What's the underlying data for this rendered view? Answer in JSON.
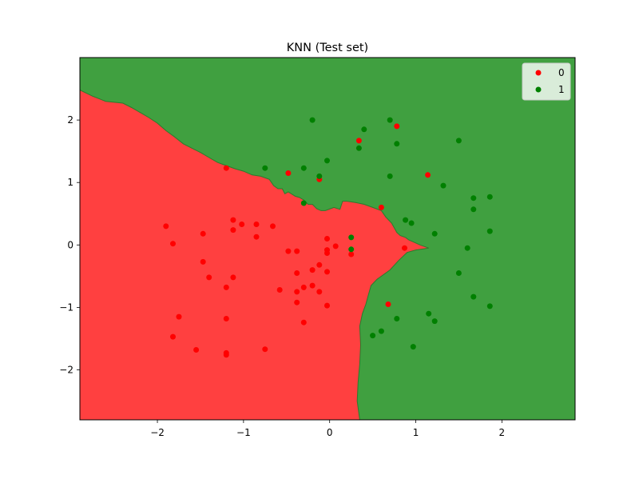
{
  "chart_data": {
    "type": "scatter",
    "title": "KNN (Test set)",
    "xlabel": "",
    "ylabel": "",
    "xlim": [
      -2.9,
      2.85
    ],
    "ylim": [
      -2.8,
      3.0
    ],
    "x_ticks": [
      -2,
      -1,
      0,
      1,
      2
    ],
    "y_ticks": [
      -2,
      -1,
      0,
      1,
      2
    ],
    "x_tick_labels": [
      "−2",
      "−1",
      "0",
      "1",
      "2"
    ],
    "y_tick_labels": [
      "−2",
      "−1",
      "0",
      "1",
      "2"
    ],
    "grid": false,
    "legend_position": "top-right",
    "region_colors": {
      "0": "#ff4040",
      "1": "#40a040"
    },
    "decision_boundary": [
      [
        -2.9,
        2.48
      ],
      [
        -2.75,
        2.38
      ],
      [
        -2.6,
        2.3
      ],
      [
        -2.4,
        2.27
      ],
      [
        -2.3,
        2.2
      ],
      [
        -2.2,
        2.12
      ],
      [
        -2.1,
        2.04
      ],
      [
        -2.0,
        1.95
      ],
      [
        -1.9,
        1.83
      ],
      [
        -1.8,
        1.73
      ],
      [
        -1.7,
        1.62
      ],
      [
        -1.6,
        1.55
      ],
      [
        -1.5,
        1.48
      ],
      [
        -1.4,
        1.4
      ],
      [
        -1.3,
        1.32
      ],
      [
        -1.2,
        1.27
      ],
      [
        -1.1,
        1.22
      ],
      [
        -1.0,
        1.18
      ],
      [
        -0.9,
        1.12
      ],
      [
        -0.8,
        1.1
      ],
      [
        -0.7,
        1.05
      ],
      [
        -0.65,
        0.95
      ],
      [
        -0.6,
        0.9
      ],
      [
        -0.55,
        0.9
      ],
      [
        -0.52,
        0.82
      ],
      [
        -0.48,
        0.85
      ],
      [
        -0.4,
        0.78
      ],
      [
        -0.35,
        0.76
      ],
      [
        -0.3,
        0.72
      ],
      [
        -0.25,
        0.65
      ],
      [
        -0.2,
        0.65
      ],
      [
        -0.15,
        0.58
      ],
      [
        -0.1,
        0.55
      ],
      [
        -0.05,
        0.55
      ],
      [
        0.05,
        0.6
      ],
      [
        0.12,
        0.57
      ],
      [
        0.15,
        0.7
      ],
      [
        0.2,
        0.7
      ],
      [
        0.3,
        0.68
      ],
      [
        0.4,
        0.65
      ],
      [
        0.5,
        0.6
      ],
      [
        0.6,
        0.55
      ],
      [
        0.65,
        0.45
      ],
      [
        0.72,
        0.35
      ],
      [
        0.78,
        0.2
      ],
      [
        0.82,
        0.15
      ],
      [
        0.88,
        0.12
      ],
      [
        0.92,
        0.08
      ],
      [
        0.97,
        0.05
      ],
      [
        1.05,
        0.0
      ],
      [
        1.15,
        -0.05
      ],
      [
        1.0,
        -0.08
      ],
      [
        0.9,
        -0.12
      ],
      [
        0.8,
        -0.25
      ],
      [
        0.7,
        -0.4
      ],
      [
        0.6,
        -0.5
      ],
      [
        0.55,
        -0.55
      ],
      [
        0.48,
        -0.65
      ],
      [
        0.45,
        -0.8
      ],
      [
        0.42,
        -0.95
      ],
      [
        0.38,
        -1.1
      ],
      [
        0.35,
        -1.3
      ],
      [
        0.36,
        -1.6
      ],
      [
        0.35,
        -1.9
      ],
      [
        0.33,
        -2.2
      ],
      [
        0.32,
        -2.5
      ],
      [
        0.35,
        -2.8
      ]
    ],
    "series": [
      {
        "name": "0",
        "color": "#ff0000",
        "points": [
          [
            -1.9,
            0.3
          ],
          [
            -1.82,
            0.02
          ],
          [
            -1.75,
            -1.15
          ],
          [
            -1.82,
            -1.47
          ],
          [
            -1.55,
            -1.68
          ],
          [
            -1.47,
            0.18
          ],
          [
            -1.47,
            -0.27
          ],
          [
            -1.4,
            -0.52
          ],
          [
            -1.2,
            1.23
          ],
          [
            -1.2,
            -0.68
          ],
          [
            -1.2,
            -1.18
          ],
          [
            -1.2,
            -1.73
          ],
          [
            -1.2,
            -1.76
          ],
          [
            -1.12,
            0.4
          ],
          [
            -1.12,
            0.24
          ],
          [
            -1.12,
            -0.52
          ],
          [
            -1.02,
            0.33
          ],
          [
            -0.85,
            0.33
          ],
          [
            -0.85,
            0.13
          ],
          [
            -0.75,
            -1.67
          ],
          [
            -0.66,
            0.3
          ],
          [
            -0.58,
            -0.72
          ],
          [
            -0.48,
            1.15
          ],
          [
            -0.48,
            -0.1
          ],
          [
            -0.38,
            -0.1
          ],
          [
            -0.38,
            -0.45
          ],
          [
            -0.38,
            -0.75
          ],
          [
            -0.38,
            -0.92
          ],
          [
            -0.3,
            -0.68
          ],
          [
            -0.3,
            -1.24
          ],
          [
            -0.2,
            -0.4
          ],
          [
            -0.2,
            -0.65
          ],
          [
            -0.12,
            -0.32
          ],
          [
            -0.12,
            -0.75
          ],
          [
            -0.12,
            1.05
          ],
          [
            -0.03,
            0.1
          ],
          [
            -0.03,
            -0.08
          ],
          [
            -0.03,
            -0.13
          ],
          [
            -0.03,
            -0.43
          ],
          [
            -0.03,
            -0.97
          ],
          [
            0.07,
            -0.02
          ],
          [
            0.25,
            -0.15
          ],
          [
            0.34,
            1.67
          ],
          [
            0.6,
            0.6
          ],
          [
            0.68,
            -0.95
          ],
          [
            0.78,
            1.9
          ],
          [
            0.87,
            -0.05
          ],
          [
            1.14,
            1.12
          ]
        ]
      },
      {
        "name": "1",
        "color": "#008000",
        "points": [
          [
            -0.2,
            2.0
          ],
          [
            -0.75,
            1.23
          ],
          [
            -0.3,
            1.23
          ],
          [
            -0.12,
            1.1
          ],
          [
            -0.3,
            0.67
          ],
          [
            -0.03,
            1.35
          ],
          [
            0.25,
            0.12
          ],
          [
            0.25,
            -0.07
          ],
          [
            0.34,
            1.55
          ],
          [
            0.4,
            1.85
          ],
          [
            0.5,
            -1.45
          ],
          [
            0.6,
            -1.38
          ],
          [
            0.7,
            2.0
          ],
          [
            0.7,
            1.1
          ],
          [
            0.78,
            1.62
          ],
          [
            0.78,
            -1.18
          ],
          [
            0.88,
            0.4
          ],
          [
            0.95,
            0.35
          ],
          [
            0.97,
            -1.63
          ],
          [
            1.15,
            -1.1
          ],
          [
            1.22,
            -1.22
          ],
          [
            1.22,
            0.18
          ],
          [
            1.32,
            0.95
          ],
          [
            1.5,
            1.67
          ],
          [
            1.5,
            -0.45
          ],
          [
            1.6,
            -0.05
          ],
          [
            1.67,
            0.75
          ],
          [
            1.67,
            0.57
          ],
          [
            1.67,
            -0.83
          ],
          [
            1.86,
            0.77
          ],
          [
            1.86,
            0.22
          ],
          [
            1.86,
            -0.98
          ]
        ]
      }
    ]
  }
}
